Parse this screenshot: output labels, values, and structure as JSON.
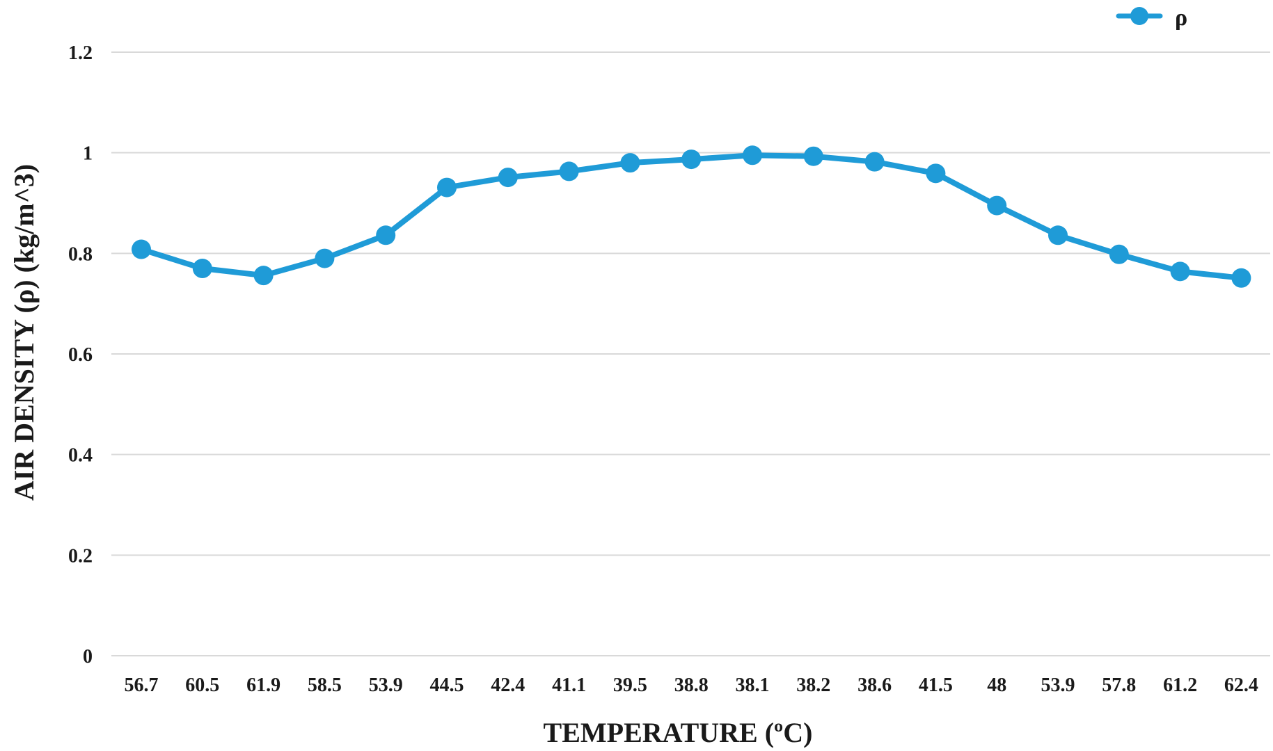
{
  "chart_data": {
    "type": "line",
    "title": "",
    "xlabel": "TEMPERATURE (ºC)",
    "ylabel": "AIR DENSITY (ρ) (kg/m^3)",
    "ylim": [
      0,
      1.2
    ],
    "yticks": [
      "0",
      "0.2",
      "0.4",
      "0.6",
      "0.8",
      "1",
      "1.2"
    ],
    "grid": "horizontal",
    "legend_position": "top-right",
    "categories": [
      "56.7",
      "60.5",
      "61.9",
      "58.5",
      "53.9",
      "44.5",
      "42.4",
      "41.1",
      "39.5",
      "38.8",
      "38.1",
      "38.2",
      "38.6",
      "41.5",
      "48",
      "53.9",
      "57.8",
      "61.2",
      "62.4"
    ],
    "series": [
      {
        "name": "ρ",
        "color": "#1f9bd7",
        "values": [
          0.808,
          0.77,
          0.756,
          0.79,
          0.836,
          0.931,
          0.951,
          0.963,
          0.98,
          0.987,
          0.995,
          0.993,
          0.982,
          0.959,
          0.895,
          0.836,
          0.798,
          0.764,
          0.751
        ]
      }
    ]
  }
}
